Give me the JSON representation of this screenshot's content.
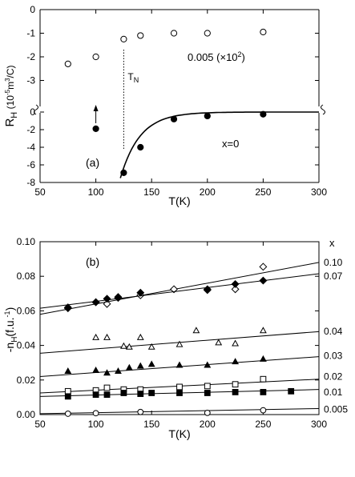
{
  "chart_data": [
    {
      "type": "scatter",
      "panel_label": "(a)",
      "ylabel_main": "R",
      "ylabel_sub": "H",
      "ylabel_units_pre": " (10",
      "ylabel_units_exp": "-5",
      "ylabel_units_mid": "m",
      "ylabel_units_exp2": "3",
      "ylabel_units_post": "/C)",
      "xlabel": "T(K)",
      "x_ticks": [
        "50",
        "100",
        "150",
        "200",
        "250",
        "300"
      ],
      "xlim": [
        50,
        300
      ],
      "broken_y_axis": true,
      "upper_segment": {
        "ylim": [
          -4,
          0
        ],
        "y_ticks": [
          "0",
          "-1",
          "-2",
          "-3"
        ],
        "series": [
          {
            "name": "0.005 (×10²)",
            "marker": "open-circle",
            "x": [
              75,
              100,
              125,
              140,
              170,
              200,
              250
            ],
            "y": [
              -2.3,
              -2.0,
              -1.25,
              -1.1,
              -1.0,
              -1.0,
              -0.95
            ]
          }
        ],
        "series_label": "0.005 (×10",
        "series_label_exp": "2",
        "series_label_close": ")"
      },
      "lower_segment": {
        "ylim": [
          -8,
          0
        ],
        "y_ticks": [
          "0",
          "-2",
          "-4",
          "-6",
          "-8"
        ],
        "series": [
          {
            "name": "x=0",
            "marker": "filled-circle",
            "x": [
              100,
              125,
              140,
              170,
              200,
              250
            ],
            "y": [
              -1.9,
              -6.9,
              -4.0,
              -0.8,
              -0.45,
              -0.25
            ]
          }
        ],
        "series_label": "x=0"
      },
      "annotations": {
        "tn_label": "T",
        "tn_sub": "N",
        "tn_x": 125,
        "arrow_x": 100
      }
    },
    {
      "type": "scatter",
      "panel_label": "(b)",
      "ylabel_pre": "-n",
      "ylabel_sub": "H",
      "ylabel_post": "(f.u.",
      "ylabel_exp": "-1",
      "ylabel_close": ")",
      "xlabel": "T(K)",
      "legend_title": "x",
      "x_ticks": [
        "50",
        "100",
        "150",
        "200",
        "250",
        "300"
      ],
      "y_ticks": [
        "0.00",
        "0.02",
        "0.04",
        "0.06",
        "0.08",
        "0.10"
      ],
      "xlim": [
        50,
        300
      ],
      "ylim": [
        0,
        0.1
      ],
      "series": [
        {
          "name": "0.10",
          "marker": "open-diamond",
          "x": [
            75,
            100,
            110,
            120,
            140,
            170,
            200,
            225,
            250
          ],
          "y": [
            0.0615,
            0.065,
            0.064,
            0.068,
            0.069,
            0.0725,
            0.072,
            0.0725,
            0.0855
          ],
          "fit": [
            0.058,
            0.088
          ]
        },
        {
          "name": "0.07",
          "marker": "filled-diamond",
          "x": [
            75,
            100,
            110,
            120,
            140,
            200,
            225,
            250
          ],
          "y": [
            0.062,
            0.065,
            0.067,
            0.0675,
            0.0705,
            0.0725,
            0.0755,
            0.0775
          ],
          "fit": [
            0.0615,
            0.0815
          ]
        },
        {
          "name": "0.04",
          "marker": "open-triangle",
          "x": [
            100,
            110,
            125,
            130,
            140,
            150,
            175,
            190,
            210,
            225,
            250
          ],
          "y": [
            0.0445,
            0.0445,
            0.0395,
            0.039,
            0.0445,
            0.039,
            0.0405,
            0.0485,
            0.0415,
            0.041,
            0.0485
          ],
          "fit": [
            0.0355,
            0.048
          ]
        },
        {
          "name": "0.03",
          "marker": "filled-triangle",
          "x": [
            75,
            100,
            110,
            120,
            130,
            140,
            150,
            175,
            200,
            225,
            250
          ],
          "y": [
            0.025,
            0.0255,
            0.024,
            0.025,
            0.027,
            0.028,
            0.029,
            0.0285,
            0.0285,
            0.0305,
            0.032
          ],
          "fit": [
            0.022,
            0.0335
          ]
        },
        {
          "name": "0.02",
          "marker": "open-square",
          "x": [
            75,
            100,
            110,
            125,
            140,
            175,
            200,
            225,
            250
          ],
          "y": [
            0.0135,
            0.014,
            0.0155,
            0.0145,
            0.0145,
            0.016,
            0.0165,
            0.0175,
            0.0205
          ],
          "fit": [
            0.0125,
            0.0205
          ]
        },
        {
          "name": "0.01",
          "marker": "filled-square",
          "x": [
            75,
            100,
            110,
            125,
            140,
            150,
            175,
            200,
            225,
            250,
            275
          ],
          "y": [
            0.0105,
            0.0115,
            0.0115,
            0.0125,
            0.012,
            0.0125,
            0.0125,
            0.0125,
            0.013,
            0.013,
            0.0135
          ],
          "fit": [
            0.0105,
            0.0145
          ]
        },
        {
          "name": "0.005",
          "marker": "open-circle",
          "x": [
            75,
            100,
            140,
            200,
            250
          ],
          "y": [
            0.0005,
            0.0008,
            0.0015,
            0.001,
            0.0025
          ],
          "fit": [
            0.0005,
            0.0035
          ]
        }
      ]
    }
  ]
}
